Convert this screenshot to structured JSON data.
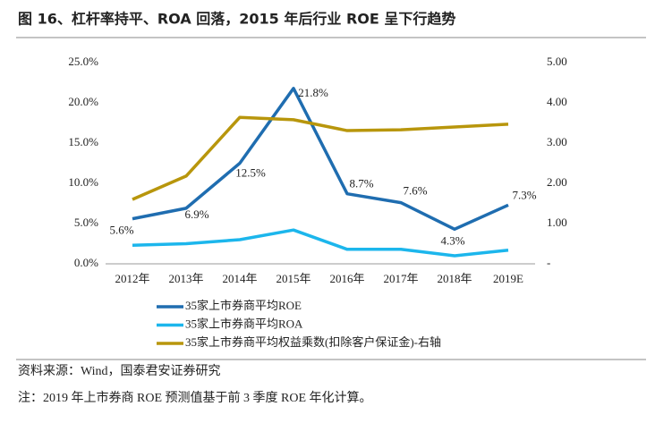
{
  "chart_data": {
    "type": "line",
    "title": "图 16、杠杆率持平、ROA 回落，2015 年后行业 ROE 呈下行趋势",
    "categories": [
      "2012年",
      "2013年",
      "2014年",
      "2015年",
      "2016年",
      "2017年",
      "2018年",
      "2019E"
    ],
    "series": [
      {
        "name": "35家上市券商平均ROE",
        "color": "#1f6db0",
        "values": [
          5.6,
          6.9,
          12.5,
          21.8,
          8.7,
          7.6,
          4.3,
          7.3
        ],
        "value_labels": [
          "5.6%",
          "6.9%",
          "12.5%",
          "21.8%",
          "8.7%",
          "7.6%",
          "4.3%",
          "7.3%"
        ]
      },
      {
        "name": "35家上市券商平均ROA",
        "color": "#1cb6ec",
        "values": [
          2.3,
          2.5,
          3.0,
          4.2,
          1.8,
          1.8,
          1.0,
          1.7
        ]
      },
      {
        "name": "35家上市券商平均权益乘数(扣除客户保证金)-右轴",
        "color": "#b8960c",
        "axis": "y2",
        "values": [
          1.6,
          2.18,
          3.64,
          3.58,
          3.31,
          3.33,
          3.4,
          3.47
        ]
      }
    ],
    "ylim": [
      0,
      25
    ],
    "yticks": [
      {
        "value": 0,
        "label": "0.0%"
      },
      {
        "value": 5,
        "label": "5.0%"
      },
      {
        "value": 10,
        "label": "10.0%"
      },
      {
        "value": 15,
        "label": "15.0%"
      },
      {
        "value": 20,
        "label": "20.0%"
      },
      {
        "value": 25,
        "label": "25.0%"
      }
    ],
    "y2lim": [
      0,
      5
    ],
    "y2ticks": [
      {
        "value": 0,
        "label": "-"
      },
      {
        "value": 1,
        "label": "1.00"
      },
      {
        "value": 2,
        "label": "2.00"
      },
      {
        "value": 3,
        "label": "3.00"
      },
      {
        "value": 4,
        "label": "4.00"
      },
      {
        "value": 5,
        "label": "5.00"
      }
    ],
    "source": "资料来源：Wind，国泰君安证券研究",
    "note": "注：2019 年上市券商 ROE 预测值基于前 3 季度 ROE 年化计算。"
  }
}
